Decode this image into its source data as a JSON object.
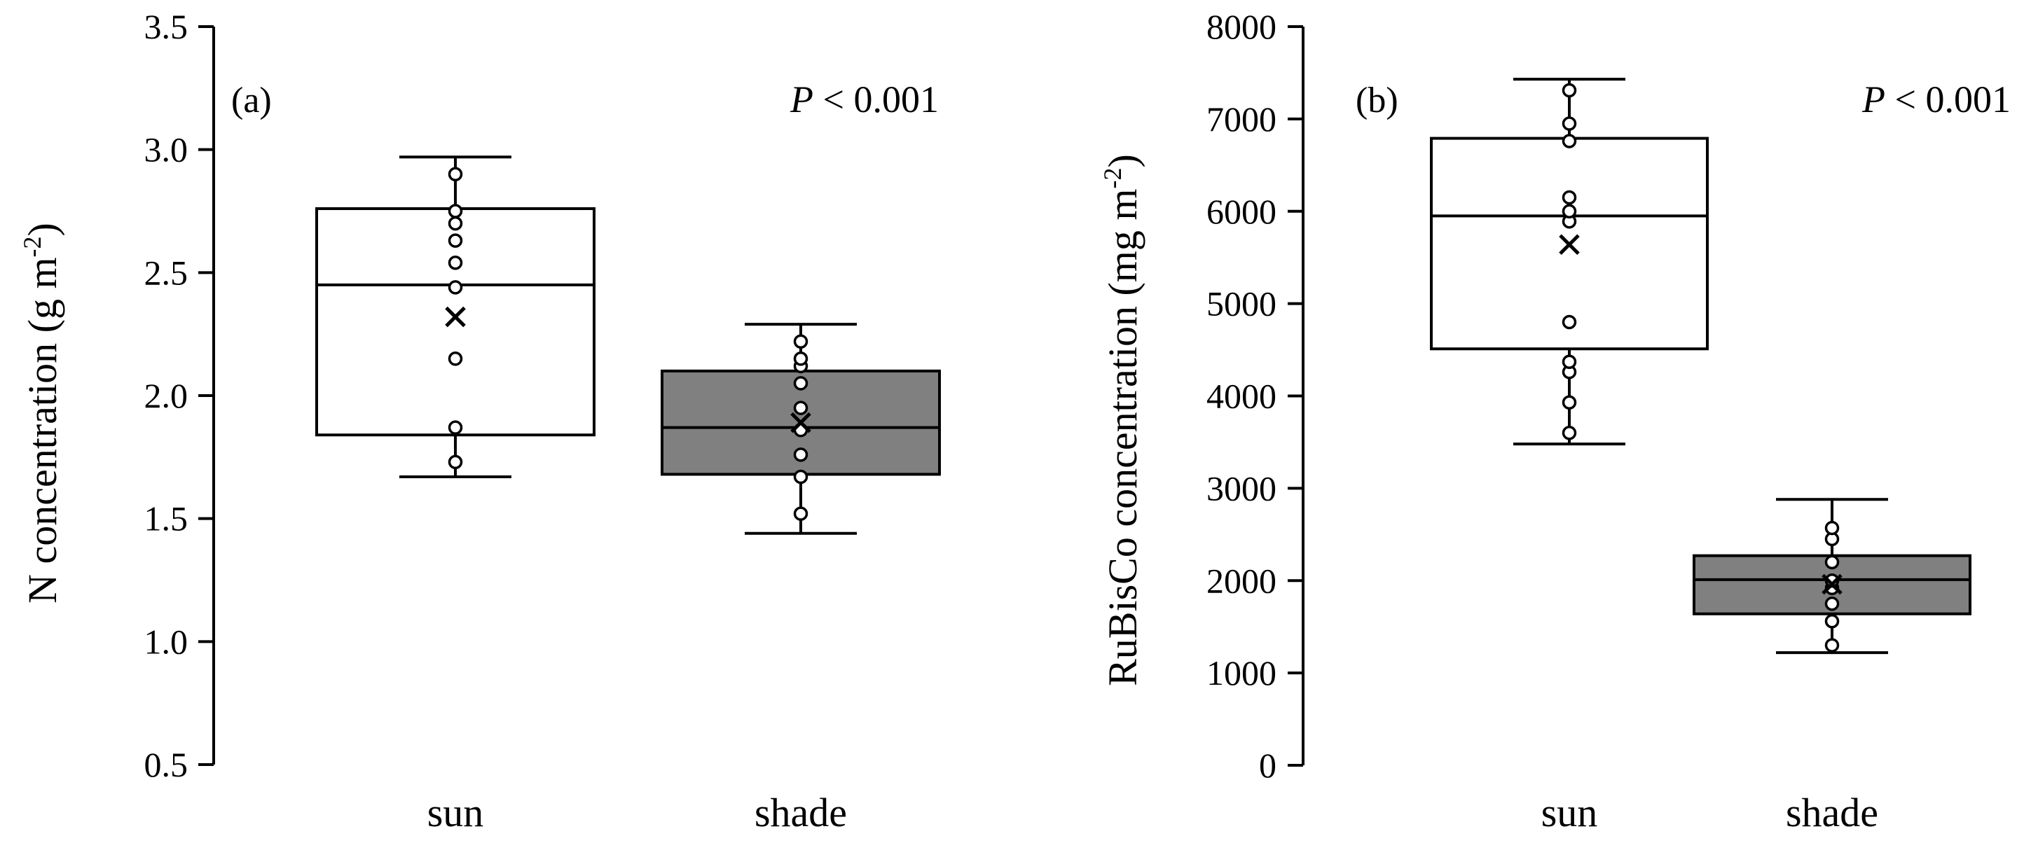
{
  "chart_data": [
    {
      "type": "box",
      "panel_label": "(a)",
      "annotation": {
        "p_symbol": "P",
        "p_text": " < 0.001"
      },
      "ylabel_main": "N concentration  (g m",
      "ylabel_sup": "-2",
      "ylabel_end": ")",
      "ylim": [
        0.5,
        3.5
      ],
      "yticks": [
        0.5,
        1.0,
        1.5,
        2.0,
        2.5,
        3.0,
        3.5
      ],
      "categories": [
        "sun",
        "shade"
      ],
      "boxes": [
        {
          "name": "sun",
          "fill": "#ffffff",
          "whisker_low": 1.67,
          "q1": 1.84,
          "median": 2.45,
          "q3": 2.76,
          "whisker_high": 2.97,
          "mean": 2.32,
          "points": [
            1.73,
            1.87,
            2.15,
            2.44,
            2.54,
            2.63,
            2.7,
            2.75,
            2.9
          ]
        },
        {
          "name": "shade",
          "fill": "#808080",
          "whisker_low": 1.44,
          "q1": 1.68,
          "median": 1.87,
          "q3": 2.1,
          "whisker_high": 2.29,
          "mean": 1.89,
          "points": [
            1.52,
            1.67,
            1.76,
            1.86,
            1.95,
            2.05,
            2.12,
            2.15,
            2.22
          ]
        }
      ]
    },
    {
      "type": "box",
      "panel_label": "(b)",
      "annotation": {
        "p_symbol": "P",
        "p_text": " < 0.001"
      },
      "ylabel_main": "RuBisCo concentration  (mg m",
      "ylabel_sup": "-2",
      "ylabel_end": ")",
      "ylim": [
        0,
        8000
      ],
      "yticks": [
        0,
        1000,
        2000,
        3000,
        4000,
        5000,
        6000,
        7000,
        8000
      ],
      "categories": [
        "sun",
        "shade"
      ],
      "boxes": [
        {
          "name": "sun",
          "fill": "#ffffff",
          "whisker_low": 3480,
          "q1": 4510,
          "median": 5950,
          "q3": 6790,
          "whisker_high": 7430,
          "mean": 5640,
          "points": [
            3600,
            3930,
            4260,
            4370,
            4800,
            5890,
            6000,
            6150,
            6760,
            6950,
            7310
          ]
        },
        {
          "name": "shade",
          "fill": "#808080",
          "whisker_low": 1220,
          "q1": 1640,
          "median": 2010,
          "q3": 2270,
          "whisker_high": 2880,
          "mean": 1960,
          "points": [
            1300,
            1560,
            1750,
            1920,
            2000,
            2200,
            2450,
            2570
          ]
        }
      ]
    }
  ]
}
